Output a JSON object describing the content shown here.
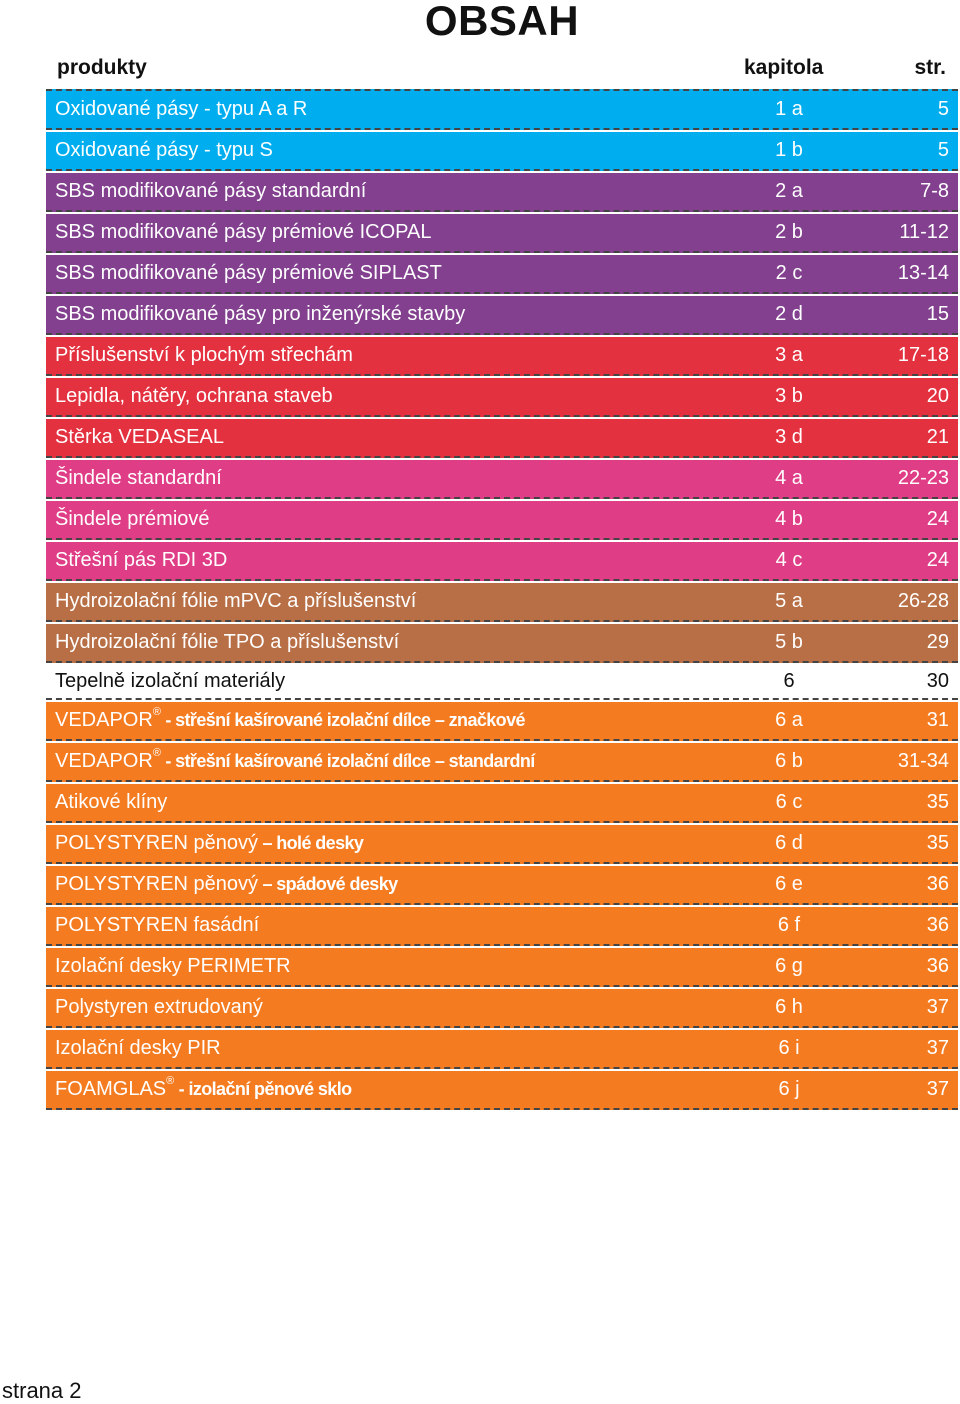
{
  "title": "OBSAH",
  "header": {
    "products": "produkty",
    "chapter": "kapitola",
    "page": "str."
  },
  "colors": {
    "blue": "#00aeef",
    "purple": "#82408f",
    "red": "#e3313f",
    "pink": "#df3d86",
    "brown": "#b86f46",
    "orange": "#f47b20",
    "white": "#ffffff"
  },
  "rows": [
    {
      "name": "Oxidované pásy - typu A a R",
      "chapter": "1 a",
      "page": "5",
      "color": "#00aeef"
    },
    {
      "name": "Oxidované pásy - typu S",
      "chapter": "1 b",
      "page": "5",
      "color": "#00aeef"
    },
    {
      "name": "SBS modifikované pásy standardní",
      "chapter": "2 a",
      "page": "7-8",
      "color": "#82408f"
    },
    {
      "name": "SBS modifikované pásy prémiové ICOPAL",
      "chapter": "2 b",
      "page": "11-12",
      "color": "#82408f"
    },
    {
      "name": "SBS modifikované pásy prémiové SIPLAST",
      "chapter": "2 c",
      "page": "13-14",
      "color": "#82408f"
    },
    {
      "name": "SBS modifikované pásy pro inženýrské stavby",
      "chapter": "2 d",
      "page": "15",
      "color": "#82408f"
    },
    {
      "name": "Příslušenství k plochým střechám",
      "chapter": "3 a",
      "page": "17-18",
      "color": "#e3313f"
    },
    {
      "name": "Lepidla, nátěry, ochrana staveb",
      "chapter": "3 b",
      "page": "20",
      "color": "#e3313f"
    },
    {
      "name": "Stěrka VEDASEAL",
      "chapter": "3 d",
      "page": "21",
      "color": "#e3313f"
    },
    {
      "name": "Šindele standardní",
      "chapter": "4 a",
      "page": "22-23",
      "color": "#df3d86"
    },
    {
      "name": "Šindele prémiové",
      "chapter": "4 b",
      "page": "24",
      "color": "#df3d86"
    },
    {
      "name": "Střešní pás RDI 3D",
      "chapter": "4 c",
      "page": "24",
      "color": "#df3d86"
    },
    {
      "name": "Hydroizolační fólie mPVC a příslušenství",
      "chapter": "5 a",
      "page": "26-28",
      "color": "#b86f46"
    },
    {
      "name": "Hydroizolační fólie TPO a příslušenství",
      "chapter": "5 b",
      "page": "29",
      "color": "#b86f46"
    },
    {
      "name": "Tepelně izolační materiály",
      "chapter": "6",
      "page": "30",
      "color": "#ffffff"
    },
    {
      "name": "VEDAPOR",
      "mark": "®",
      "sub": " - střešní kašírované izolační dílce – značkové",
      "chapter": "6 a",
      "page": "31",
      "color": "#f47b20"
    },
    {
      "name": "VEDAPOR",
      "mark": "®",
      "sub": " - střešní kašírované izolační dílce – standardní",
      "chapter": "6 b",
      "page": "31-34",
      "color": "#f47b20"
    },
    {
      "name": "Atikové klíny",
      "chapter": "6 c",
      "page": "35",
      "color": "#f47b20"
    },
    {
      "name": "POLYSTYREN pěnový",
      "sub": " – holé desky",
      "chapter": "6 d",
      "page": "35",
      "color": "#f47b20"
    },
    {
      "name": "POLYSTYREN pěnový",
      "sub": " – spádové desky",
      "chapter": "6 e",
      "page": "36",
      "color": "#f47b20"
    },
    {
      "name": "POLYSTYREN fasádní",
      "chapter": "6 f",
      "page": "36",
      "color": "#f47b20"
    },
    {
      "name": "Izolační desky PERIMETR",
      "chapter": "6 g",
      "page": "36",
      "color": "#f47b20"
    },
    {
      "name": "Polystyren extrudovaný",
      "chapter": "6 h",
      "page": "37",
      "color": "#f47b20"
    },
    {
      "name": "Izolační desky PIR",
      "chapter": "6 i",
      "page": "37",
      "color": "#f47b20"
    },
    {
      "name": "FOAMGLAS",
      "mark": "®",
      "sub": " - izolační pěnové sklo",
      "chapter": "6 j",
      "page": "37",
      "color": "#f47b20"
    }
  ],
  "footer": "strana 2"
}
